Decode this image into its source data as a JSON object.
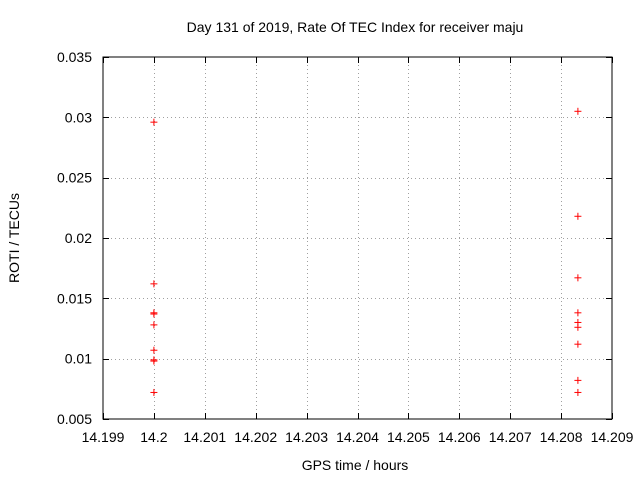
{
  "chart_data": {
    "type": "scatter",
    "title": "Day 131 of 2019, Rate Of TEC Index for receiver maju",
    "xlabel": "GPS time / hours",
    "ylabel": "ROTI / TECUs",
    "xlim": [
      14.199,
      14.209
    ],
    "ylim": [
      0.005,
      0.035
    ],
    "grid": true,
    "marker": "+",
    "marker_color": "#ff0000",
    "x_ticks": [
      14.199,
      14.2,
      14.201,
      14.202,
      14.203,
      14.204,
      14.205,
      14.206,
      14.207,
      14.208,
      14.209
    ],
    "x_tick_labels": [
      "14.199",
      "14.2",
      "14.201",
      "14.202",
      "14.203",
      "14.204",
      "14.205",
      "14.206",
      "14.207",
      "14.208",
      "14.209"
    ],
    "y_ticks": [
      0.005,
      0.01,
      0.015,
      0.02,
      0.025,
      0.03,
      0.035
    ],
    "y_tick_labels": [
      "0.005",
      "0.01",
      "0.015",
      "0.02",
      "0.025",
      "0.03",
      "0.035"
    ],
    "series": [
      {
        "name": "ROTI",
        "points": [
          {
            "x": 14.2,
            "y": 0.0296
          },
          {
            "x": 14.2,
            "y": 0.0162
          },
          {
            "x": 14.2,
            "y": 0.0138
          },
          {
            "x": 14.2,
            "y": 0.0137
          },
          {
            "x": 14.2,
            "y": 0.0128
          },
          {
            "x": 14.2,
            "y": 0.0107
          },
          {
            "x": 14.2,
            "y": 0.0099
          },
          {
            "x": 14.2,
            "y": 0.0098
          },
          {
            "x": 14.2,
            "y": 0.0072
          },
          {
            "x": 14.20833,
            "y": 0.0305
          },
          {
            "x": 14.20833,
            "y": 0.0218
          },
          {
            "x": 14.20833,
            "y": 0.0167
          },
          {
            "x": 14.20833,
            "y": 0.0138
          },
          {
            "x": 14.20833,
            "y": 0.013
          },
          {
            "x": 14.20833,
            "y": 0.0126
          },
          {
            "x": 14.20833,
            "y": 0.0112
          },
          {
            "x": 14.20833,
            "y": 0.0082
          },
          {
            "x": 14.20833,
            "y": 0.0072
          }
        ]
      }
    ]
  }
}
